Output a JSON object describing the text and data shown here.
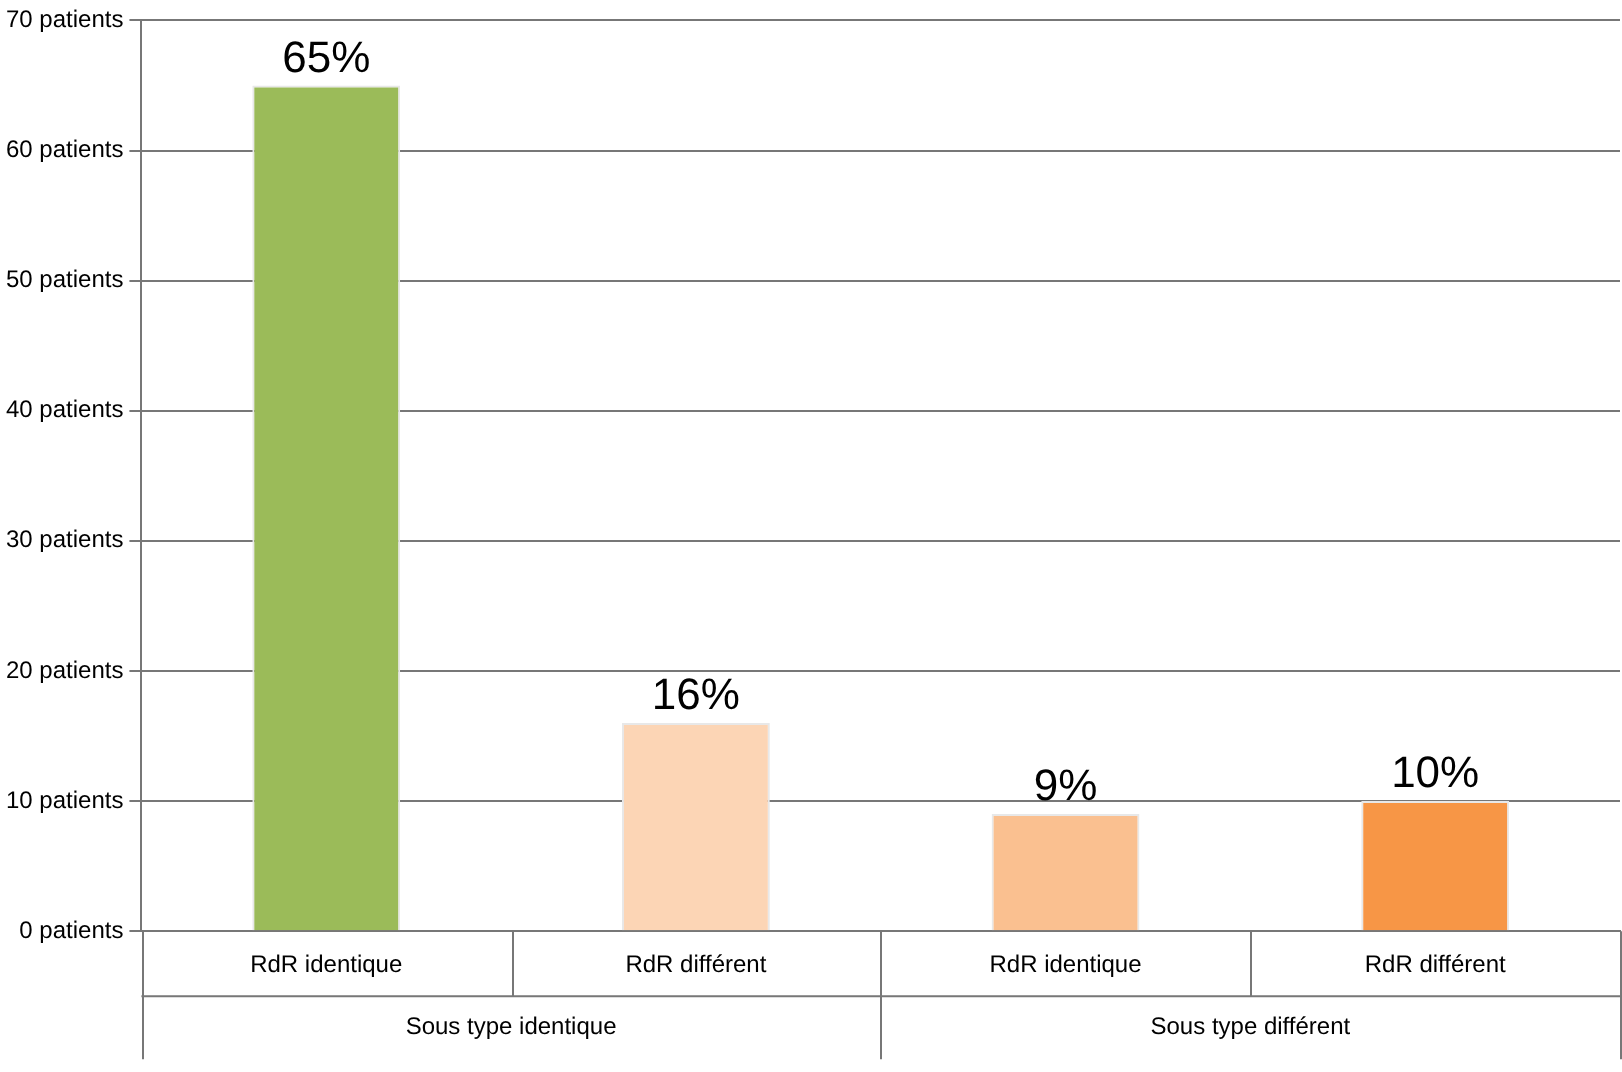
{
  "chart_data": {
    "type": "bar",
    "categories": [
      "RdR identique",
      "RdR différent",
      "RdR identique",
      "RdR différent"
    ],
    "values": [
      65,
      16,
      9,
      10
    ],
    "colors": [
      "#9bbb59",
      "#fcd5b5",
      "#fac090",
      "#f79646"
    ],
    "value_labels": [
      "65%",
      "16%",
      "9%",
      "10%"
    ],
    "ylim": [
      0,
      70
    ],
    "yticks": [
      {
        "value": 0,
        "label": "0 patients"
      },
      {
        "value": 10,
        "label": "10 patients"
      },
      {
        "value": 20,
        "label": "20 patients"
      },
      {
        "value": 30,
        "label": "30 patients"
      },
      {
        "value": 40,
        "label": "40 patients"
      },
      {
        "value": 50,
        "label": "50 patients"
      },
      {
        "value": 60,
        "label": "60 patients"
      },
      {
        "value": 70,
        "label": "70 patients"
      }
    ],
    "annotations": [
      "Sous type identique",
      "Sous type différent"
    ],
    "grid": "y",
    "legend": false
  }
}
